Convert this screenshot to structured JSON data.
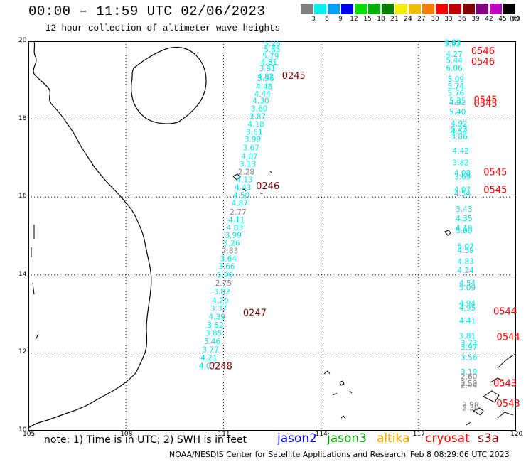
{
  "title": "00:00 – 11:59 UTC 02/06/2023",
  "subtitle": "12 hour collection of altimeter wave heights",
  "colorbar": {
    "colors": [
      "#808080",
      "#00f0f0",
      "#00a0ff",
      "#0000f0",
      "#00e000",
      "#00b000",
      "#008000",
      "#f0f000",
      "#f0c000",
      "#f08000",
      "#ff0000",
      "#c00000",
      "#800000",
      "#800080",
      "#c000c0",
      "#000000"
    ],
    "labels": [
      "3",
      "6",
      "9",
      "12",
      "15",
      "18",
      "21",
      "24",
      "27",
      "30",
      "33",
      "36",
      "39",
      "42",
      "45",
      "70"
    ],
    "unit": "(ft)"
  },
  "axes": {
    "lon_ticks": [
      "105",
      "108",
      "111",
      "114",
      "117",
      "120"
    ],
    "lat_ticks": [
      "10",
      "12",
      "14",
      "16",
      "18",
      "20"
    ]
  },
  "tracks": [
    {
      "name": "track-west-a",
      "points": [
        {
          "lon": 112.5,
          "lat": 19.87,
          "value": "5.26",
          "color": "#00e8e8"
        },
        {
          "lon": 112.5,
          "lat": 19.72,
          "value": "5.55",
          "color": "#00e8e8"
        },
        {
          "lon": 112.45,
          "lat": 19.55,
          "value": "5.79",
          "color": "#00e8e8"
        },
        {
          "lon": 112.4,
          "lat": 19.4,
          "value": "4.81",
          "color": "#00e8e8"
        },
        {
          "lon": 112.35,
          "lat": 19.23,
          "value": "3.91",
          "color": "#00e8e8"
        },
        {
          "lon": 112.3,
          "lat": 19.02,
          "value": "4.82",
          "color": "#00e8e8"
        },
        {
          "lon": 112.3,
          "lat": 18.98,
          "value": "3.96",
          "color": "#00e8e8"
        },
        {
          "lon": 112.25,
          "lat": 18.77,
          "value": "4.48",
          "color": "#00e8e8"
        },
        {
          "lon": 112.2,
          "lat": 18.58,
          "value": "4.44",
          "color": "#00e8e8"
        },
        {
          "lon": 112.15,
          "lat": 18.4,
          "value": "4.30",
          "color": "#00e8e8"
        },
        {
          "lon": 112.1,
          "lat": 18.2,
          "value": "3.60",
          "color": "#00e8e8"
        },
        {
          "lon": 112.05,
          "lat": 18.0,
          "value": "3.87",
          "color": "#00e8e8"
        },
        {
          "lon": 112.0,
          "lat": 17.8,
          "value": "4.18",
          "color": "#00e8e8"
        },
        {
          "lon": 111.95,
          "lat": 17.6,
          "value": "3.61",
          "color": "#00e8e8"
        },
        {
          "lon": 111.9,
          "lat": 17.42,
          "value": "3.99",
          "color": "#00e8e8"
        },
        {
          "lon": 111.85,
          "lat": 17.2,
          "value": "3.67",
          "color": "#00e8e8"
        },
        {
          "lon": 111.8,
          "lat": 16.98,
          "value": "4.07",
          "color": "#00e8e8"
        },
        {
          "lon": 111.75,
          "lat": 16.78,
          "value": "3.13",
          "color": "#00e8e8"
        },
        {
          "lon": 111.7,
          "lat": 16.58,
          "value": "2.28",
          "color": "#808080"
        },
        {
          "lon": 111.65,
          "lat": 16.38,
          "value": "4.13",
          "color": "#00e8e8"
        },
        {
          "lon": 111.6,
          "lat": 16.18,
          "value": "4.43",
          "color": "#00e8e8"
        },
        {
          "lon": 111.55,
          "lat": 15.98,
          "value": "4.50",
          "color": "#00e8e8"
        },
        {
          "lon": 111.5,
          "lat": 15.78,
          "value": "4.87",
          "color": "#00e8e8"
        },
        {
          "lon": 111.45,
          "lat": 15.55,
          "value": "2.77",
          "color": "#808080"
        },
        {
          "lon": 111.4,
          "lat": 15.35,
          "value": "4.11",
          "color": "#00e8e8"
        },
        {
          "lon": 111.35,
          "lat": 15.15,
          "value": "4.03",
          "color": "#00e8e8"
        },
        {
          "lon": 111.3,
          "lat": 14.95,
          "value": "3.99",
          "color": "#00e8e8"
        },
        {
          "lon": 111.25,
          "lat": 14.75,
          "value": "3.26",
          "color": "#00e8e8"
        },
        {
          "lon": 111.2,
          "lat": 14.55,
          "value": "2.83",
          "color": "#808080"
        },
        {
          "lon": 111.15,
          "lat": 14.35,
          "value": "3.64",
          "color": "#00e8e8"
        },
        {
          "lon": 111.1,
          "lat": 14.15,
          "value": "3.66",
          "color": "#00e8e8"
        },
        {
          "lon": 111.05,
          "lat": 13.93,
          "value": "5.00",
          "color": "#00e8e8"
        },
        {
          "lon": 111.0,
          "lat": 13.72,
          "value": "2.75",
          "color": "#808080"
        },
        {
          "lon": 110.95,
          "lat": 13.5,
          "value": "3.82",
          "color": "#00e8e8"
        },
        {
          "lon": 110.9,
          "lat": 13.28,
          "value": "4.20",
          "color": "#00e8e8"
        },
        {
          "lon": 110.85,
          "lat": 13.07,
          "value": "3.32",
          "color": "#00e8e8"
        },
        {
          "lon": 110.8,
          "lat": 12.86,
          "value": "4.39",
          "color": "#00e8e8"
        },
        {
          "lon": 110.75,
          "lat": 12.65,
          "value": "3.52",
          "color": "#00e8e8"
        },
        {
          "lon": 110.7,
          "lat": 12.44,
          "value": "3.85",
          "color": "#00e8e8"
        },
        {
          "lon": 110.65,
          "lat": 12.23,
          "value": "3.46",
          "color": "#00e8e8"
        },
        {
          "lon": 110.6,
          "lat": 12.02,
          "value": "3.77",
          "color": "#00e8e8"
        },
        {
          "lon": 110.55,
          "lat": 11.81,
          "value": "4.21",
          "color": "#00e8e8"
        },
        {
          "lon": 110.5,
          "lat": 11.6,
          "value": "4.07",
          "color": "#00e8e8"
        }
      ]
    },
    {
      "name": "track-east",
      "points": [
        {
          "lon": 118.05,
          "lat": 19.9,
          "value": "3.83",
          "color": "#00e8e8"
        },
        {
          "lon": 118.05,
          "lat": 19.86,
          "value": "3.92",
          "color": "#00e8e8"
        },
        {
          "lon": 118.1,
          "lat": 19.6,
          "value": "4.27",
          "color": "#00e8e8"
        },
        {
          "lon": 118.1,
          "lat": 19.44,
          "value": "5.44",
          "color": "#00e8e8"
        },
        {
          "lon": 118.1,
          "lat": 19.24,
          "value": "6.06",
          "color": "#00e8e8"
        },
        {
          "lon": 118.15,
          "lat": 18.96,
          "value": "5.09",
          "color": "#00e8e8"
        },
        {
          "lon": 118.15,
          "lat": 18.78,
          "value": "5.74",
          "color": "#00e8e8"
        },
        {
          "lon": 118.15,
          "lat": 18.6,
          "value": "5.76",
          "color": "#00e8e8"
        },
        {
          "lon": 118.2,
          "lat": 18.4,
          "value": "5.35",
          "color": "#00e8e8"
        },
        {
          "lon": 118.2,
          "lat": 18.36,
          "value": "4.92",
          "color": "#00e8e8"
        },
        {
          "lon": 118.2,
          "lat": 18.12,
          "value": "5.40",
          "color": "#00e8e8"
        },
        {
          "lon": 118.25,
          "lat": 17.82,
          "value": "4.92",
          "color": "#00e8e8"
        },
        {
          "lon": 118.25,
          "lat": 17.68,
          "value": "5.23",
          "color": "#00e8e8"
        },
        {
          "lon": 118.25,
          "lat": 17.62,
          "value": "4.54",
          "color": "#00e8e8"
        },
        {
          "lon": 118.25,
          "lat": 17.48,
          "value": "3.86",
          "color": "#00e8e8"
        },
        {
          "lon": 118.3,
          "lat": 17.12,
          "value": "4.42",
          "color": "#00e8e8"
        },
        {
          "lon": 118.3,
          "lat": 16.82,
          "value": "3.82",
          "color": "#00e8e8"
        },
        {
          "lon": 118.35,
          "lat": 16.55,
          "value": "4.08",
          "color": "#00e8e8"
        },
        {
          "lon": 118.35,
          "lat": 16.45,
          "value": "3.69",
          "color": "#00e8e8"
        },
        {
          "lon": 118.35,
          "lat": 16.12,
          "value": "4.07",
          "color": "#00e8e8"
        },
        {
          "lon": 118.35,
          "lat": 16.02,
          "value": "4.54",
          "color": "#00e8e8"
        },
        {
          "lon": 118.4,
          "lat": 15.62,
          "value": "3.43",
          "color": "#00e8e8"
        },
        {
          "lon": 118.4,
          "lat": 15.38,
          "value": "4.35",
          "color": "#00e8e8"
        },
        {
          "lon": 118.4,
          "lat": 15.14,
          "value": "4.19",
          "color": "#00e8e8"
        },
        {
          "lon": 118.4,
          "lat": 15.06,
          "value": "5.00",
          "color": "#00e8e8"
        },
        {
          "lon": 118.45,
          "lat": 14.66,
          "value": "5.07",
          "color": "#00e8e8"
        },
        {
          "lon": 118.45,
          "lat": 14.56,
          "value": "4.59",
          "color": "#00e8e8"
        },
        {
          "lon": 118.45,
          "lat": 14.28,
          "value": "4.83",
          "color": "#00e8e8"
        },
        {
          "lon": 118.45,
          "lat": 14.05,
          "value": "4.24",
          "color": "#00e8e8"
        },
        {
          "lon": 118.5,
          "lat": 13.72,
          "value": "4.54",
          "color": "#00e8e8"
        },
        {
          "lon": 118.5,
          "lat": 13.6,
          "value": "5.09",
          "color": "#00e8e8"
        },
        {
          "lon": 118.5,
          "lat": 13.2,
          "value": "4.94",
          "color": "#00e8e8"
        },
        {
          "lon": 118.5,
          "lat": 13.08,
          "value": "4.95",
          "color": "#00e8e8"
        },
        {
          "lon": 118.5,
          "lat": 12.76,
          "value": "4.41",
          "color": "#00e8e8"
        },
        {
          "lon": 118.5,
          "lat": 12.36,
          "value": "3.81",
          "color": "#00e8e8"
        },
        {
          "lon": 118.55,
          "lat": 12.18,
          "value": "3.73",
          "color": "#00e8e8"
        },
        {
          "lon": 118.55,
          "lat": 12.08,
          "value": "3.97",
          "color": "#00e8e8"
        },
        {
          "lon": 118.55,
          "lat": 11.82,
          "value": "3.56",
          "color": "#00e8e8"
        },
        {
          "lon": 118.55,
          "lat": 11.44,
          "value": "3.19",
          "color": "#00e8e8"
        },
        {
          "lon": 118.55,
          "lat": 11.32,
          "value": "2.60",
          "color": "#808080"
        },
        {
          "lon": 118.55,
          "lat": 11.15,
          "value": "2.50",
          "color": "#808080"
        },
        {
          "lon": 118.55,
          "lat": 11.1,
          "value": "2.44",
          "color": "#808080"
        },
        {
          "lon": 118.6,
          "lat": 10.6,
          "value": "2.98",
          "color": "#808080"
        },
        {
          "lon": 118.6,
          "lat": 10.52,
          "value": "2.30",
          "color": "#808080"
        }
      ]
    }
  ],
  "pass_times": [
    {
      "lon": 112.8,
      "lat": 19.03,
      "text": "0245",
      "color": "#800000"
    },
    {
      "lon": 112.0,
      "lat": 16.2,
      "text": "0246",
      "color": "#800000"
    },
    {
      "lon": 111.6,
      "lat": 12.95,
      "text": "0247",
      "color": "#800000"
    },
    {
      "lon": 110.55,
      "lat": 11.58,
      "text": "0248",
      "color": "#800000"
    },
    {
      "lon": 118.62,
      "lat": 19.67,
      "text": "0546",
      "color": "#ff0000"
    },
    {
      "lon": 118.62,
      "lat": 19.4,
      "text": "0546",
      "color": "#ff0000"
    },
    {
      "lon": 118.7,
      "lat": 18.42,
      "text": "0545",
      "color": "#ff0000"
    },
    {
      "lon": 118.7,
      "lat": 18.32,
      "text": "0545",
      "color": "#ff0000"
    },
    {
      "lon": 119.0,
      "lat": 16.56,
      "text": "0545",
      "color": "#ff0000"
    },
    {
      "lon": 119.0,
      "lat": 16.1,
      "text": "0545",
      "color": "#ff0000"
    },
    {
      "lon": 119.3,
      "lat": 12.98,
      "text": "0544",
      "color": "#ff0000"
    },
    {
      "lon": 119.4,
      "lat": 12.33,
      "text": "0544",
      "color": "#ff0000"
    },
    {
      "lon": 119.3,
      "lat": 11.14,
      "text": "0543",
      "color": "#ff0000"
    },
    {
      "lon": 119.4,
      "lat": 10.62,
      "text": "0543",
      "color": "#ff0000"
    }
  ],
  "note": "note: 1) Time is in UTC; 2) SWH is in feet",
  "missions": [
    {
      "label": "jason2",
      "color": "#0000e0"
    },
    {
      "label": "jason3",
      "color": "#00a000"
    },
    {
      "label": "altika",
      "color": "#f0a000"
    },
    {
      "label": "cryosat",
      "color": "#ff0000"
    },
    {
      "label": "s3a",
      "color": "#800000"
    }
  ],
  "footer_left": "NOAA/NESDIS Center for Satellite Applications and Research",
  "footer_right": "Feb  8 08:29:06 UTC 2023"
}
